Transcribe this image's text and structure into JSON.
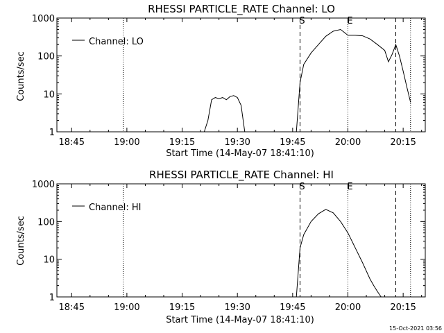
{
  "chart_data": [
    {
      "type": "line",
      "title": "RHESSI PARTICLE_RATE Channel: LO",
      "xlabel": "Start Time (14-May-07 18:41:10)",
      "ylabel": "Counts/sec",
      "y_scale": "log",
      "ylim": [
        1,
        1000
      ],
      "xlim": [
        "18:41",
        "20:21"
      ],
      "x_ticks": [
        "18:45",
        "19:00",
        "19:15",
        "19:30",
        "19:45",
        "20:00",
        "20:15"
      ],
      "y_ticks": [
        "1",
        "10",
        "100",
        "1000"
      ],
      "legend": "Channel: LO",
      "legend_position": "top-left",
      "grid": false,
      "vlines_dotted": [
        "18:59",
        "20:00",
        "20:17"
      ],
      "vlines_dashed": [
        "19:47",
        "20:13"
      ],
      "markers": [
        {
          "label": "S",
          "x": "19:47"
        },
        {
          "label": "E",
          "x": "20:00"
        }
      ],
      "series": [
        {
          "x": [
            "19:21",
            "19:22",
            "19:23",
            "19:24",
            "19:25",
            "19:26",
            "19:27",
            "19:28",
            "19:29",
            "19:30",
            "19:31",
            "19:32",
            "19:46",
            "19:47",
            "19:48",
            "19:50",
            "19:52",
            "19:54",
            "19:56",
            "19:58",
            "19:59",
            "20:00",
            "20:02",
            "20:04",
            "20:06",
            "20:08",
            "20:10",
            "20:11",
            "20:12",
            "20:13",
            "20:14",
            "20:15",
            "20:16",
            "20:17"
          ],
          "y": [
            1,
            2,
            7,
            8,
            7.5,
            8,
            7,
            8.5,
            9,
            8,
            5,
            1,
            1,
            20,
            60,
            120,
            200,
            330,
            450,
            500,
            420,
            350,
            350,
            340,
            280,
            200,
            140,
            70,
            110,
            200,
            100,
            40,
            15,
            6
          ]
        }
      ]
    },
    {
      "type": "line",
      "title": "RHESSI PARTICLE_RATE Channel: HI",
      "xlabel": "Start Time (14-May-07 18:41:10)",
      "ylabel": "Counts/sec",
      "y_scale": "log",
      "ylim": [
        1,
        1000
      ],
      "xlim": [
        "18:41",
        "20:21"
      ],
      "x_ticks": [
        "18:45",
        "19:00",
        "19:15",
        "19:30",
        "19:45",
        "20:00",
        "20:15"
      ],
      "y_ticks": [
        "1",
        "10",
        "100",
        "1000"
      ],
      "legend": "Channel: HI",
      "legend_position": "top-left",
      "grid": false,
      "vlines_dotted": [
        "18:59",
        "20:00",
        "20:17"
      ],
      "vlines_dashed": [
        "19:47",
        "20:13"
      ],
      "markers": [
        {
          "label": "S",
          "x": "19:47"
        },
        {
          "label": "E",
          "x": "20:00"
        }
      ],
      "series": [
        {
          "x": [
            "19:46",
            "19:47",
            "19:48",
            "19:50",
            "19:52",
            "19:54",
            "19:56",
            "19:58",
            "20:00",
            "20:02",
            "20:04",
            "20:06",
            "20:07",
            "20:08",
            "20:09"
          ],
          "y": [
            1,
            20,
            45,
            100,
            160,
            210,
            170,
            100,
            50,
            20,
            8,
            3,
            2,
            1.4,
            1
          ]
        }
      ]
    }
  ],
  "footer_timestamp": "15-Oct-2021 03:56"
}
